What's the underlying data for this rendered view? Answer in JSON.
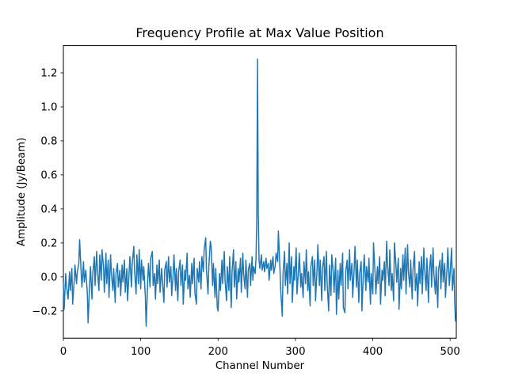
{
  "figure": {
    "title": "Frequency Profile at Max Value Position",
    "xlabel": "Channel Number",
    "ylabel": "Amplitude (Jy/Beam)",
    "background_color": "#ffffff",
    "spine_color": "#000000"
  },
  "chart_data": {
    "type": "line",
    "title": "Frequency Profile at Max Value Position",
    "xlabel": "Channel Number",
    "ylabel": "Amplitude (Jy/Beam)",
    "legend": null,
    "grid": false,
    "line_color": "#1f77b4",
    "line_width": 1.5,
    "xlim": [
      0,
      508
    ],
    "ylim": [
      -0.36,
      1.36
    ],
    "xticks": [
      0,
      100,
      200,
      300,
      400,
      500
    ],
    "xtick_labels": [
      "0",
      "100",
      "200",
      "300",
      "400",
      "500"
    ],
    "yticks": [
      -0.2,
      0.0,
      0.2,
      0.4,
      0.6,
      0.8,
      1.0,
      1.2
    ],
    "ytick_labels": [
      "−0.2",
      "0.0",
      "0.2",
      "0.4",
      "0.6",
      "0.8",
      "1.0",
      "1.2"
    ],
    "peak": {
      "channel": 251,
      "amplitude": 1.28
    },
    "noise_level": 0.1,
    "points": [
      [
        0,
        -0.04
      ],
      [
        1,
        -0.19
      ],
      [
        3,
        0.02
      ],
      [
        4,
        -0.05
      ],
      [
        6,
        -0.13
      ],
      [
        8,
        0.03
      ],
      [
        9,
        -0.08
      ],
      [
        11,
        0.05
      ],
      [
        12,
        -0.16
      ],
      [
        14,
        -0.02
      ],
      [
        15,
        0.07
      ],
      [
        17,
        -0.04
      ],
      [
        18,
        0.03
      ],
      [
        20,
        0.08
      ],
      [
        21,
        0.22
      ],
      [
        23,
        0.02
      ],
      [
        24,
        -0.06
      ],
      [
        26,
        0.09
      ],
      [
        27,
        -0.03
      ],
      [
        29,
        0.04
      ],
      [
        31,
        -0.1
      ],
      [
        32,
        -0.27
      ],
      [
        34,
        -0.04
      ],
      [
        35,
        0.06
      ],
      [
        37,
        -0.13
      ],
      [
        38,
        0.02
      ],
      [
        40,
        0.12
      ],
      [
        41,
        -0.05
      ],
      [
        43,
        0.15
      ],
      [
        44,
        0.04
      ],
      [
        46,
        -0.08
      ],
      [
        47,
        0.13
      ],
      [
        49,
        -0.02
      ],
      [
        50,
        0.16
      ],
      [
        52,
        0.05
      ],
      [
        53,
        -0.09
      ],
      [
        55,
        0.14
      ],
      [
        56,
        -0.04
      ],
      [
        58,
        0.1
      ],
      [
        59,
        -0.12
      ],
      [
        61,
        0.13
      ],
      [
        62,
        0.03
      ],
      [
        64,
        -0.08
      ],
      [
        65,
        0.05
      ],
      [
        67,
        -0.15
      ],
      [
        68,
        0.02
      ],
      [
        70,
        0.08
      ],
      [
        71,
        -0.06
      ],
      [
        73,
        0.04
      ],
      [
        74,
        -0.11
      ],
      [
        76,
        0.07
      ],
      [
        77,
        -0.03
      ],
      [
        79,
        0.1
      ],
      [
        80,
        -0.09
      ],
      [
        82,
        0.05
      ],
      [
        83,
        -0.14
      ],
      [
        85,
        0.03
      ],
      [
        86,
        0.12
      ],
      [
        88,
        -0.06
      ],
      [
        89,
        0.08
      ],
      [
        91,
        0.18
      ],
      [
        92,
        0.04
      ],
      [
        94,
        -0.1
      ],
      [
        95,
        0.13
      ],
      [
        97,
        -0.04
      ],
      [
        98,
        0.16
      ],
      [
        100,
        -0.07
      ],
      [
        101,
        0.1
      ],
      [
        103,
        -0.02
      ],
      [
        104,
        0.06
      ],
      [
        106,
        -0.12
      ],
      [
        107,
        -0.29
      ],
      [
        109,
        -0.03
      ],
      [
        110,
        0.08
      ],
      [
        112,
        -0.06
      ],
      [
        113,
        0.11
      ],
      [
        115,
        0.15
      ],
      [
        116,
        -0.05
      ],
      [
        118,
        0.02
      ],
      [
        119,
        -0.13
      ],
      [
        121,
        0.07
      ],
      [
        122,
        -0.04
      ],
      [
        124,
        0.1
      ],
      [
        125,
        -0.09
      ],
      [
        127,
        0.05
      ],
      [
        128,
        -0.02
      ],
      [
        130,
        -0.15
      ],
      [
        131,
        0.04
      ],
      [
        133,
        0.09
      ],
      [
        134,
        -0.06
      ],
      [
        136,
        0.12
      ],
      [
        137,
        -0.03
      ],
      [
        139,
        0.06
      ],
      [
        140,
        -0.11
      ],
      [
        142,
        0.02
      ],
      [
        143,
        0.13
      ],
      [
        145,
        -0.08
      ],
      [
        146,
        0.05
      ],
      [
        148,
        -0.14
      ],
      [
        149,
        0.03
      ],
      [
        151,
        0.1
      ],
      [
        152,
        -0.05
      ],
      [
        154,
        0.07
      ],
      [
        155,
        -0.16
      ],
      [
        157,
        0.04
      ],
      [
        158,
        -0.02
      ],
      [
        160,
        0.14
      ],
      [
        161,
        -0.07
      ],
      [
        163,
        0.01
      ],
      [
        164,
        -0.12
      ],
      [
        166,
        0.08
      ],
      [
        167,
        -0.04
      ],
      [
        169,
        0.11
      ],
      [
        170,
        -0.09
      ],
      [
        172,
        -0.16
      ],
      [
        173,
        0.05
      ],
      [
        175,
        -0.03
      ],
      [
        176,
        0.09
      ],
      [
        178,
        -0.07
      ],
      [
        179,
        0.12
      ],
      [
        181,
        0.03
      ],
      [
        182,
        0.16
      ],
      [
        184,
        0.23
      ],
      [
        185,
        0.04
      ],
      [
        187,
        -0.1
      ],
      [
        188,
        0.06
      ],
      [
        190,
        0.21
      ],
      [
        191,
        0.18
      ],
      [
        193,
        -0.05
      ],
      [
        194,
        0.08
      ],
      [
        196,
        -0.12
      ],
      [
        197,
        0.05
      ],
      [
        199,
        -0.18
      ],
      [
        200,
        -0.2
      ],
      [
        202,
        0.02
      ],
      [
        203,
        -0.08
      ],
      [
        205,
        0.1
      ],
      [
        206,
        -0.04
      ],
      [
        208,
        0.15
      ],
      [
        209,
        -0.02
      ],
      [
        211,
        -0.14
      ],
      [
        212,
        0.06
      ],
      [
        214,
        -0.08
      ],
      [
        215,
        0.12
      ],
      [
        217,
        -0.18
      ],
      [
        218,
        0.03
      ],
      [
        220,
        0.16
      ],
      [
        221,
        -0.06
      ],
      [
        223,
        0.09
      ],
      [
        224,
        -0.13
      ],
      [
        226,
        0.05
      ],
      [
        227,
        -0.03
      ],
      [
        229,
        0.11
      ],
      [
        230,
        -0.09
      ],
      [
        232,
        0.14
      ],
      [
        233,
        0.02
      ],
      [
        235,
        -0.07
      ],
      [
        236,
        0.1
      ],
      [
        238,
        -0.12
      ],
      [
        239,
        0.04
      ],
      [
        241,
        0.08
      ],
      [
        242,
        -0.05
      ],
      [
        244,
        0.12
      ],
      [
        245,
        -0.02
      ],
      [
        246,
        0.06
      ],
      [
        248,
        0.02
      ],
      [
        249,
        0.1
      ],
      [
        250,
        0.33
      ],
      [
        251,
        1.28
      ],
      [
        252,
        0.38
      ],
      [
        253,
        0.1
      ],
      [
        254,
        0.05
      ],
      [
        256,
        0.13
      ],
      [
        257,
        0.04
      ],
      [
        259,
        0.09
      ],
      [
        260,
        0.03
      ],
      [
        262,
        0.11
      ],
      [
        263,
        0.05
      ],
      [
        265,
        0.08
      ],
      [
        266,
        -0.02
      ],
      [
        268,
        0.1
      ],
      [
        269,
        0.04
      ],
      [
        271,
        0.12
      ],
      [
        272,
        0.02
      ],
      [
        274,
        0.07
      ],
      [
        275,
        0.14
      ],
      [
        277,
        0.09
      ],
      [
        278,
        0.27
      ],
      [
        280,
        0.05
      ],
      [
        281,
        -0.08
      ],
      [
        283,
        -0.23
      ],
      [
        284,
        0.02
      ],
      [
        286,
        0.15
      ],
      [
        287,
        -0.05
      ],
      [
        289,
        0.08
      ],
      [
        290,
        -0.1
      ],
      [
        292,
        0.2
      ],
      [
        293,
        -0.04
      ],
      [
        295,
        0.12
      ],
      [
        296,
        -0.15
      ],
      [
        298,
        0.06
      ],
      [
        299,
        -0.02
      ],
      [
        301,
        0.17
      ],
      [
        302,
        -0.1
      ],
      [
        304,
        0.04
      ],
      [
        305,
        0.14
      ],
      [
        307,
        -0.06
      ],
      [
        308,
        0.02
      ],
      [
        310,
        -0.12
      ],
      [
        311,
        0.09
      ],
      [
        313,
        -0.04
      ],
      [
        314,
        0.16
      ],
      [
        316,
        -0.08
      ],
      [
        317,
        0.03
      ],
      [
        319,
        -0.17
      ],
      [
        320,
        0.06
      ],
      [
        322,
        0.12
      ],
      [
        323,
        -0.05
      ],
      [
        325,
        0.1
      ],
      [
        326,
        -0.14
      ],
      [
        328,
        0.05
      ],
      [
        329,
        0.19
      ],
      [
        331,
        -0.05
      ],
      [
        332,
        0.1
      ],
      [
        334,
        -0.14
      ],
      [
        335,
        0.05
      ],
      [
        337,
        0.12
      ],
      [
        338,
        -0.08
      ],
      [
        340,
        0.15
      ],
      [
        341,
        -0.03
      ],
      [
        343,
        -0.2
      ],
      [
        344,
        0.07
      ],
      [
        346,
        -0.11
      ],
      [
        347,
        0.13
      ],
      [
        349,
        0.02
      ],
      [
        350,
        -0.09
      ],
      [
        352,
        0.11
      ],
      [
        353,
        -0.22
      ],
      [
        355,
        0.04
      ],
      [
        356,
        -0.13
      ],
      [
        358,
        0.08
      ],
      [
        359,
        -0.05
      ],
      [
        361,
        0.14
      ],
      [
        362,
        -0.18
      ],
      [
        364,
        -0.21
      ],
      [
        365,
        0.03
      ],
      [
        367,
        0.1
      ],
      [
        368,
        -0.07
      ],
      [
        370,
        0.16
      ],
      [
        371,
        -0.02
      ],
      [
        373,
        0.08
      ],
      [
        374,
        -0.12
      ],
      [
        376,
        0.05
      ],
      [
        377,
        0.18
      ],
      [
        379,
        -0.06
      ],
      [
        380,
        0.1
      ],
      [
        382,
        -0.15
      ],
      [
        383,
        0.02
      ],
      [
        385,
        0.09
      ],
      [
        386,
        -0.2
      ],
      [
        388,
        0.04
      ],
      [
        389,
        0.13
      ],
      [
        391,
        -0.08
      ],
      [
        392,
        0.06
      ],
      [
        394,
        -0.03
      ],
      [
        395,
        0.11
      ],
      [
        397,
        -0.16
      ],
      [
        398,
        0.02
      ],
      [
        400,
        -0.1
      ],
      [
        401,
        0.2
      ],
      [
        403,
        0.02
      ],
      [
        404,
        -0.1
      ],
      [
        406,
        0.06
      ],
      [
        407,
        -0.04
      ],
      [
        409,
        0.12
      ],
      [
        410,
        -0.16
      ],
      [
        412,
        0.04
      ],
      [
        413,
        -0.02
      ],
      [
        415,
        0.09
      ],
      [
        416,
        -0.11
      ],
      [
        418,
        0.21
      ],
      [
        419,
        0.08
      ],
      [
        421,
        -0.05
      ],
      [
        422,
        0.16
      ],
      [
        424,
        -0.08
      ],
      [
        425,
        0.02
      ],
      [
        427,
        -0.14
      ],
      [
        428,
        0.2
      ],
      [
        430,
        0.07
      ],
      [
        431,
        -0.03
      ],
      [
        433,
        0.11
      ],
      [
        434,
        -0.19
      ],
      [
        436,
        0.05
      ],
      [
        437,
        -0.07
      ],
      [
        439,
        0.13
      ],
      [
        440,
        -0.02
      ],
      [
        442,
        0.17
      ],
      [
        443,
        -0.1
      ],
      [
        445,
        0.19
      ],
      [
        446,
        0.03
      ],
      [
        448,
        -0.06
      ],
      [
        449,
        0.1
      ],
      [
        451,
        -0.13
      ],
      [
        452,
        0.04
      ],
      [
        454,
        0.15
      ],
      [
        455,
        -0.08
      ],
      [
        457,
        0.02
      ],
      [
        458,
        -0.17
      ],
      [
        460,
        0.09
      ],
      [
        461,
        -0.04
      ],
      [
        463,
        0.12
      ],
      [
        464,
        -0.1
      ],
      [
        466,
        0.17
      ],
      [
        467,
        0.05
      ],
      [
        469,
        -0.08
      ],
      [
        470,
        0.11
      ],
      [
        472,
        -0.15
      ],
      [
        473,
        0.03
      ],
      [
        475,
        0.13
      ],
      [
        476,
        -0.06
      ],
      [
        478,
        0.17
      ],
      [
        479,
        0.02
      ],
      [
        481,
        -0.1
      ],
      [
        482,
        0.06
      ],
      [
        484,
        -0.18
      ],
      [
        485,
        0.04
      ],
      [
        487,
        0.1
      ],
      [
        488,
        -0.07
      ],
      [
        490,
        0.14
      ],
      [
        491,
        -0.03
      ],
      [
        493,
        0.08
      ],
      [
        494,
        -0.12
      ],
      [
        496,
        0.05
      ],
      [
        497,
        0.17
      ],
      [
        499,
        -0.05
      ],
      [
        500,
        0.02
      ],
      [
        502,
        0.17
      ],
      [
        503,
        -0.08
      ],
      [
        505,
        0.05
      ],
      [
        506,
        -0.15
      ],
      [
        507,
        -0.26
      ]
    ]
  }
}
